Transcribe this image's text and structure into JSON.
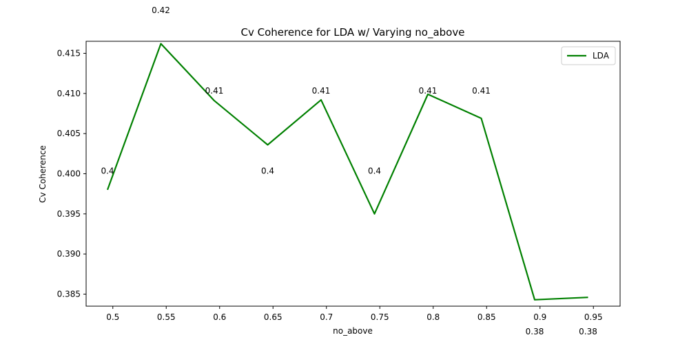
{
  "chart_data": {
    "type": "line",
    "title": "Cv Coherence for LDA w/ Varying no_above",
    "xlabel": "no_above",
    "ylabel": "Cv Coherence",
    "xlim": [
      0.475,
      0.975
    ],
    "ylim": [
      0.3835,
      0.4165
    ],
    "xticks": [
      0.5,
      0.55,
      0.6,
      0.65,
      0.7,
      0.75,
      0.8,
      0.85,
      0.9,
      0.95
    ],
    "xtick_labels": [
      "0.5",
      "0.55",
      "0.6",
      "0.65",
      "0.7",
      "0.75",
      "0.8",
      "0.85",
      "0.9",
      "0.95"
    ],
    "yticks": [
      0.385,
      0.39,
      0.395,
      0.4,
      0.405,
      0.41,
      0.415
    ],
    "ytick_labels": [
      "0.385",
      "0.390",
      "0.395",
      "0.400",
      "0.405",
      "0.410",
      "0.415"
    ],
    "grid": false,
    "legend_position": "top-right",
    "series": [
      {
        "name": "LDA",
        "color": "#008000",
        "x": [
          0.495,
          0.545,
          0.595,
          0.645,
          0.695,
          0.745,
          0.795,
          0.845,
          0.895,
          0.945
        ],
        "y": [
          0.398,
          0.4162,
          0.4091,
          0.4036,
          0.4092,
          0.395,
          0.4099,
          0.4069,
          0.3843,
          0.3846
        ]
      }
    ],
    "annotations": [
      {
        "text": "0.4",
        "x": 0.495,
        "y": 0.4
      },
      {
        "text": "0.42",
        "x": 0.545,
        "y": 0.42
      },
      {
        "text": "0.41",
        "x": 0.595,
        "y": 0.41
      },
      {
        "text": "0.4",
        "x": 0.645,
        "y": 0.4
      },
      {
        "text": "0.41",
        "x": 0.695,
        "y": 0.41
      },
      {
        "text": "0.4",
        "x": 0.745,
        "y": 0.4
      },
      {
        "text": "0.41",
        "x": 0.795,
        "y": 0.41
      },
      {
        "text": "0.41",
        "x": 0.845,
        "y": 0.41
      },
      {
        "text": "0.38",
        "x": 0.895,
        "y": 0.38
      },
      {
        "text": "0.38",
        "x": 0.945,
        "y": 0.38
      }
    ]
  }
}
